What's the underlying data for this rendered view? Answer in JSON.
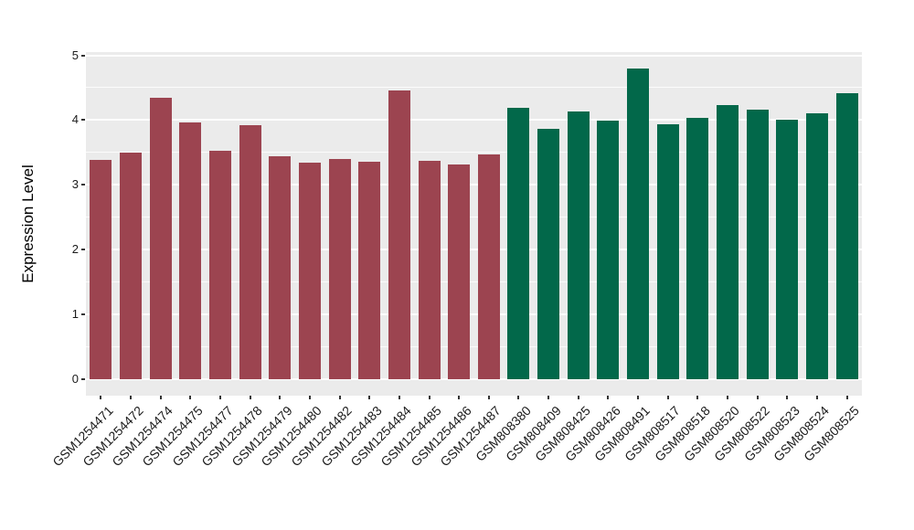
{
  "figure": {
    "background": "#FFFFFF",
    "panel_background": "#EBEBEB",
    "grid_color": "#FFFFFF",
    "axis_text_color": "#1A1A1A",
    "tick_color": "#333333"
  },
  "chart_data": {
    "type": "bar",
    "title": "",
    "xlabel": "",
    "ylabel": "Expression Level",
    "ylim": [
      0,
      5
    ],
    "yticks": [
      0,
      1,
      2,
      3,
      4,
      5
    ],
    "minor_grid_step": 0.5,
    "grid": true,
    "legend_position": "none",
    "x_tick_rotation_deg": 45,
    "categories": [
      "GSM1254471",
      "GSM1254472",
      "GSM1254474",
      "GSM1254475",
      "GSM1254477",
      "GSM1254478",
      "GSM1254479",
      "GSM1254480",
      "GSM1254482",
      "GSM1254483",
      "GSM1254484",
      "GSM1254485",
      "GSM1254486",
      "GSM1254487",
      "GSM808380",
      "GSM808409",
      "GSM808425",
      "GSM808426",
      "GSM808491",
      "GSM808517",
      "GSM808518",
      "GSM808520",
      "GSM808522",
      "GSM808523",
      "GSM808524",
      "GSM808525"
    ],
    "values": [
      3.38,
      3.49,
      4.34,
      3.96,
      3.53,
      3.92,
      3.44,
      3.34,
      3.4,
      3.36,
      4.45,
      3.37,
      3.31,
      3.47,
      4.19,
      3.86,
      4.13,
      3.99,
      4.8,
      3.93,
      4.04,
      4.23,
      4.16,
      4.01,
      4.1,
      4.41
    ],
    "bar_groups": [
      0,
      0,
      0,
      0,
      0,
      0,
      0,
      0,
      0,
      0,
      0,
      0,
      0,
      0,
      1,
      1,
      1,
      1,
      1,
      1,
      1,
      1,
      1,
      1,
      1,
      1
    ],
    "group_colors": [
      "#9C4450",
      "#02684A"
    ]
  }
}
